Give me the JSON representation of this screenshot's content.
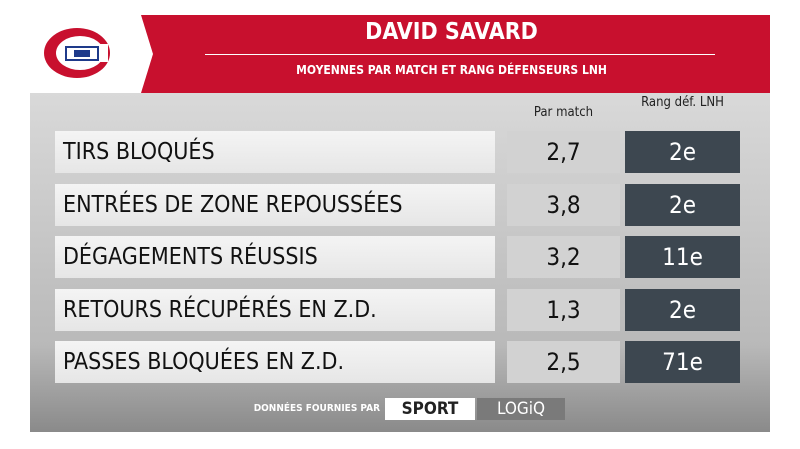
{
  "header": {
    "title": "DAVID SAVARD",
    "subtitle": "MOYENNES PAR MATCH ET RANG DÉFENSEURS LNH"
  },
  "table": {
    "columns": [
      "Par match",
      "Rang déf. LNH"
    ],
    "rows": [
      [
        "TIRS BLOQUÉS",
        "2,7",
        "2e"
      ],
      [
        "ENTRÉES DE ZONE REPOUSSÉES",
        "3,8",
        "2e"
      ],
      [
        "DÉGAGEMENTS RÉUSSIS",
        "3,2",
        "11e"
      ],
      [
        "RETOURS RÉCUPÉRÉS EN Z.D.",
        "1,3",
        "2e"
      ],
      [
        "PASSES BLOQUÉES EN Z.D.",
        "2,5",
        "71e"
      ]
    ]
  },
  "footer": {
    "credit": "DONNÉES FOURNIES PAR",
    "brand": [
      "SPORT",
      "LOGiQ"
    ]
  }
}
